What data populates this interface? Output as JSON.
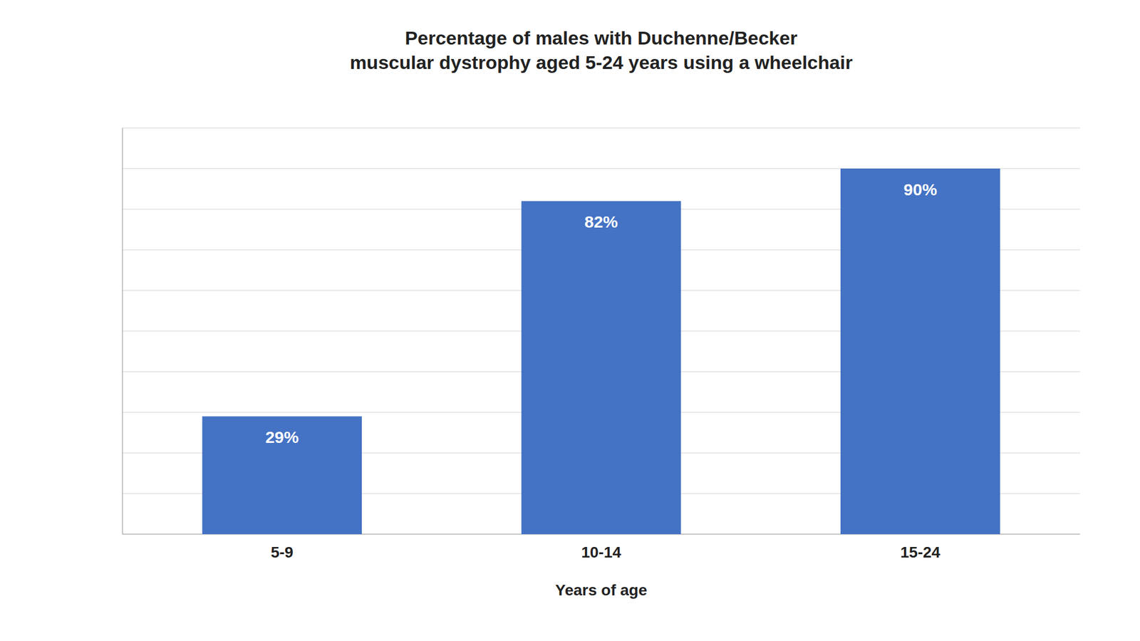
{
  "chart_data": {
    "type": "bar",
    "title": "Percentage of males with Duchenne/Becker\nmuscular dystrophy aged 5-24 years using a wheelchair",
    "categories": [
      "5-9",
      "10-14",
      "15-24"
    ],
    "values": [
      29,
      82,
      90
    ],
    "value_labels": [
      "29%",
      "82%",
      "90%"
    ],
    "data_labels": true,
    "color": "#4472C4",
    "xlabel": "Years of age",
    "ylim": [
      0,
      100
    ],
    "yticks": [
      10,
      20,
      30,
      40,
      50,
      60,
      70,
      80,
      90,
      100
    ],
    "grid": true,
    "tick_labels": "x"
  }
}
